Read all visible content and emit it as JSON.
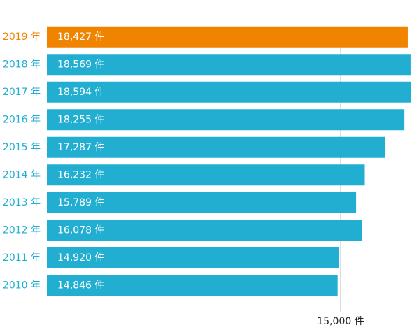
{
  "chart_data": {
    "type": "bar",
    "orientation": "horizontal",
    "categories": [
      "2019 年",
      "2018 年",
      "2017 年",
      "2016 年",
      "2015 年",
      "2014 年",
      "2013 年",
      "2012 年",
      "2011 年",
      "2010 年"
    ],
    "values": [
      18427,
      18569,
      18594,
      18255,
      17287,
      16232,
      15789,
      16078,
      14920,
      14846
    ],
    "value_labels": [
      "18,427 件",
      "18,569 件",
      "18,594 件",
      "18,255 件",
      "17,287 件",
      "16,232 件",
      "15,789 件",
      "16,078 件",
      "14,920 件",
      "14,846 件"
    ],
    "colors": [
      "#f08300",
      "#22aed1",
      "#22aed1",
      "#22aed1",
      "#22aed1",
      "#22aed1",
      "#22aed1",
      "#22aed1",
      "#22aed1",
      "#22aed1"
    ],
    "xlim": [
      0,
      19000
    ],
    "xticks": [
      {
        "value": 15000,
        "label": "15,000 件"
      }
    ],
    "grid": true
  }
}
